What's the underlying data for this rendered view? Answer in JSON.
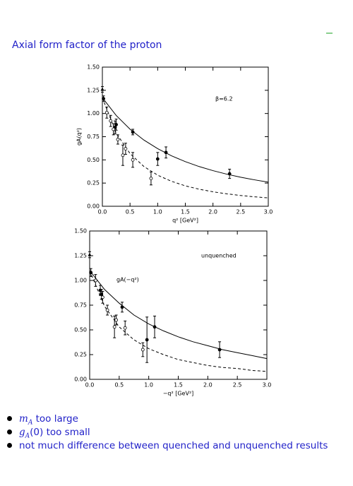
{
  "title": "Axial form factor of the proton",
  "bullets": [
    {
      "var": "m",
      "sub": "A",
      "text": "too large"
    },
    {
      "var": "g",
      "sub": "A",
      "arg": "(0)",
      "text": "too small"
    },
    {
      "text": "not much difference between quenched and unquenched results"
    }
  ],
  "chart_data": [
    {
      "type": "line",
      "xlabel": "q² [GeV²]",
      "ylabel": "gA(q²)",
      "annotations": [
        "β=6.2"
      ],
      "xlim": [
        0,
        3
      ],
      "ylim": [
        0,
        1.5
      ],
      "xticks": [
        {
          "value": 0,
          "label": "0.0"
        },
        0.5,
        {
          "value": 1,
          "label": "1.0"
        },
        1.5,
        {
          "value": 2,
          "label": "2.0"
        },
        2.5,
        {
          "value": 3,
          "label": "3.0"
        }
      ],
      "yticks": [
        {
          "value": 0,
          "label": "0.00"
        },
        0.25,
        {
          "value": 0.5,
          "label": "0.50"
        },
        0.75,
        {
          "value": 1,
          "label": "1.00"
        },
        1.25,
        {
          "value": 1.5,
          "label": "1.50"
        }
      ],
      "series": [
        {
          "color": "#000000",
          "style": "solid",
          "x": [
            0,
            0.25,
            0.5,
            0.75,
            1,
            1.25,
            1.5,
            1.75,
            2,
            2.25,
            2.5,
            2.75,
            3
          ],
          "values": [
            1.17,
            0.979,
            0.831,
            0.714,
            0.621,
            0.544,
            0.481,
            0.428,
            0.384,
            0.346,
            0.313,
            0.285,
            0.26
          ]
        },
        {
          "color": "#000000",
          "style": "dashed",
          "x": [
            0,
            0.25,
            0.5,
            0.75,
            1,
            1.25,
            1.5,
            1.75,
            2,
            2.25,
            2.5,
            2.75,
            3
          ],
          "values": [
            1.17,
            0.789,
            0.568,
            0.429,
            0.335,
            0.269,
            0.22,
            0.184,
            0.156,
            0.134,
            0.116,
            0.102,
            0.09
          ]
        },
        {
          "color": "#000000",
          "marker": "triangle",
          "x": [
            0
          ],
          "values": [
            1.26
          ],
          "errors": [
            0.03
          ]
        },
        {
          "color": "#000000",
          "marker": "filled",
          "x": [
            0.02,
            0.23,
            0.25,
            0.55,
            1.0,
            1.15,
            2.3
          ],
          "values": [
            1.16,
            0.85,
            0.88,
            0.8,
            0.51,
            0.58,
            0.35
          ],
          "errors": [
            0.03,
            0.07,
            0.06,
            0.03,
            0.07,
            0.06,
            0.05
          ]
        },
        {
          "color": "#000000",
          "marker": "open",
          "x": [
            0.08,
            0.15,
            0.2,
            0.28,
            0.37,
            0.42,
            0.55,
            0.88
          ],
          "values": [
            1.01,
            0.92,
            0.83,
            0.72,
            0.55,
            0.62,
            0.5,
            0.3
          ],
          "errors": [
            0.06,
            0.06,
            0.06,
            0.05,
            0.11,
            0.06,
            0.08,
            0.07
          ]
        }
      ]
    },
    {
      "type": "line",
      "xlabel": "−q² [GeV²]",
      "annotations": [
        "unquenched",
        "gA(−q²)"
      ],
      "xlim": [
        0,
        3
      ],
      "ylim": [
        0,
        1.5
      ],
      "xticks": [
        {
          "value": 0,
          "label": "0.0"
        },
        0.5,
        {
          "value": 1,
          "label": "1.0"
        },
        1.5,
        {
          "value": 2,
          "label": "2.0"
        },
        2.5,
        {
          "value": 3,
          "label": "3.0"
        }
      ],
      "yticks": [
        {
          "value": 0,
          "label": "0.00"
        },
        0.25,
        {
          "value": 0.5,
          "label": "0.50"
        },
        0.75,
        {
          "value": 1,
          "label": "1.00"
        },
        1.25,
        {
          "value": 1.5,
          "label": "1.50"
        }
      ],
      "series": [
        {
          "color": "#000000",
          "style": "solid",
          "x": [
            0,
            0.25,
            0.5,
            0.75,
            1,
            1.25,
            1.5,
            1.75,
            2,
            2.25,
            2.5,
            2.75,
            3
          ],
          "values": [
            1.1,
            0.91,
            0.77,
            0.65,
            0.56,
            0.49,
            0.43,
            0.38,
            0.34,
            0.3,
            0.27,
            0.24,
            0.21
          ]
        },
        {
          "color": "#000000",
          "style": "dashed",
          "x": [
            0,
            0.25,
            0.5,
            0.75,
            1,
            1.25,
            1.5,
            1.75,
            2,
            2.25,
            2.5,
            2.75,
            3
          ],
          "values": [
            1.1,
            0.74,
            0.53,
            0.4,
            0.31,
            0.25,
            0.2,
            0.17,
            0.14,
            0.12,
            0.11,
            0.09,
            0.08
          ]
        },
        {
          "color": "#000000",
          "marker": "triangle",
          "x": [
            0
          ],
          "values": [
            1.26
          ],
          "errors": [
            0.03
          ]
        },
        {
          "color": "#000000",
          "marker": "filled",
          "x": [
            0.02,
            0.18,
            0.2,
            0.55,
            0.97,
            1.1,
            2.2
          ],
          "values": [
            1.08,
            0.9,
            0.86,
            0.73,
            0.4,
            0.53,
            0.3
          ],
          "errors": [
            0.04,
            0.05,
            0.05,
            0.05,
            0.23,
            0.11,
            0.08
          ]
        },
        {
          "color": "#000000",
          "marker": "open",
          "x": [
            0.1,
            0.22,
            0.3,
            0.42,
            0.45,
            0.6,
            0.9
          ],
          "values": [
            1.0,
            0.83,
            0.7,
            0.53,
            0.6,
            0.52,
            0.3
          ],
          "errors": [
            0.06,
            0.06,
            0.05,
            0.11,
            0.05,
            0.07,
            0.07
          ]
        }
      ]
    }
  ]
}
